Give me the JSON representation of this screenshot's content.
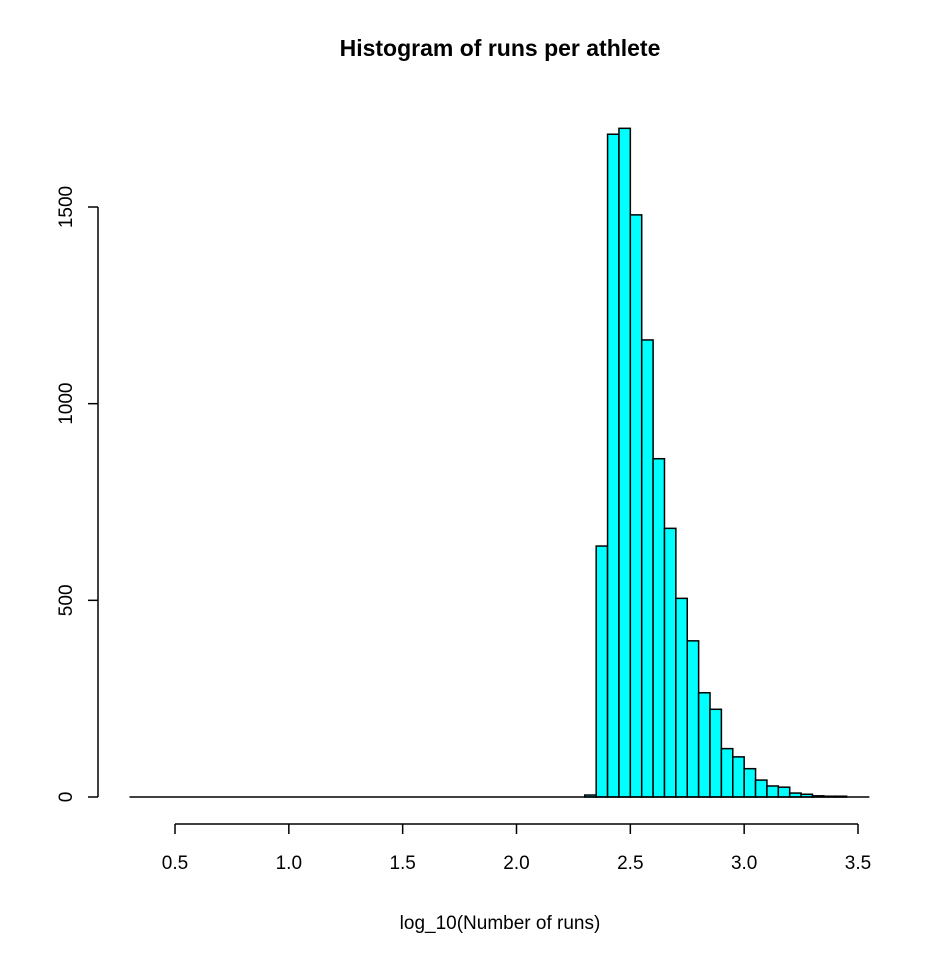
{
  "chart_data": {
    "type": "bar",
    "title": "Histogram of runs per athlete",
    "xlabel": "log_10(Number of runs)",
    "ylabel": "",
    "xlim": [
      0.3,
      3.55
    ],
    "ylim": [
      0,
      1700
    ],
    "x_ticks": [
      "0.5",
      "1.0",
      "1.5",
      "2.0",
      "2.5",
      "3.0",
      "3.5"
    ],
    "x_tick_values": [
      0.5,
      1.0,
      1.5,
      2.0,
      2.5,
      3.0,
      3.5
    ],
    "y_ticks": [
      "0",
      "500",
      "1000",
      "1500"
    ],
    "y_tick_values": [
      0,
      500,
      1000,
      1500
    ],
    "bin_width": 0.05,
    "bins": [
      {
        "x0": 2.3,
        "x1": 2.35,
        "count": 5
      },
      {
        "x0": 2.35,
        "x1": 2.4,
        "count": 638
      },
      {
        "x0": 2.4,
        "x1": 2.45,
        "count": 1685
      },
      {
        "x0": 2.45,
        "x1": 2.5,
        "count": 1700
      },
      {
        "x0": 2.5,
        "x1": 2.55,
        "count": 1480
      },
      {
        "x0": 2.55,
        "x1": 2.6,
        "count": 1162
      },
      {
        "x0": 2.6,
        "x1": 2.65,
        "count": 860
      },
      {
        "x0": 2.65,
        "x1": 2.7,
        "count": 683
      },
      {
        "x0": 2.7,
        "x1": 2.75,
        "count": 505
      },
      {
        "x0": 2.75,
        "x1": 2.8,
        "count": 397
      },
      {
        "x0": 2.8,
        "x1": 2.85,
        "count": 265
      },
      {
        "x0": 2.85,
        "x1": 2.9,
        "count": 223
      },
      {
        "x0": 2.9,
        "x1": 2.95,
        "count": 123
      },
      {
        "x0": 2.95,
        "x1": 3.0,
        "count": 102
      },
      {
        "x0": 3.0,
        "x1": 3.05,
        "count": 72
      },
      {
        "x0": 3.05,
        "x1": 3.1,
        "count": 43
      },
      {
        "x0": 3.1,
        "x1": 3.15,
        "count": 28
      },
      {
        "x0": 3.15,
        "x1": 3.2,
        "count": 25
      },
      {
        "x0": 3.2,
        "x1": 3.25,
        "count": 10
      },
      {
        "x0": 3.25,
        "x1": 3.3,
        "count": 7
      },
      {
        "x0": 3.3,
        "x1": 3.35,
        "count": 3
      },
      {
        "x0": 3.35,
        "x1": 3.4,
        "count": 2
      },
      {
        "x0": 3.4,
        "x1": 3.45,
        "count": 2
      }
    ],
    "bar_color": "#00ffff",
    "bar_edge_color": "#000000",
    "grid": false,
    "legend": "none"
  }
}
